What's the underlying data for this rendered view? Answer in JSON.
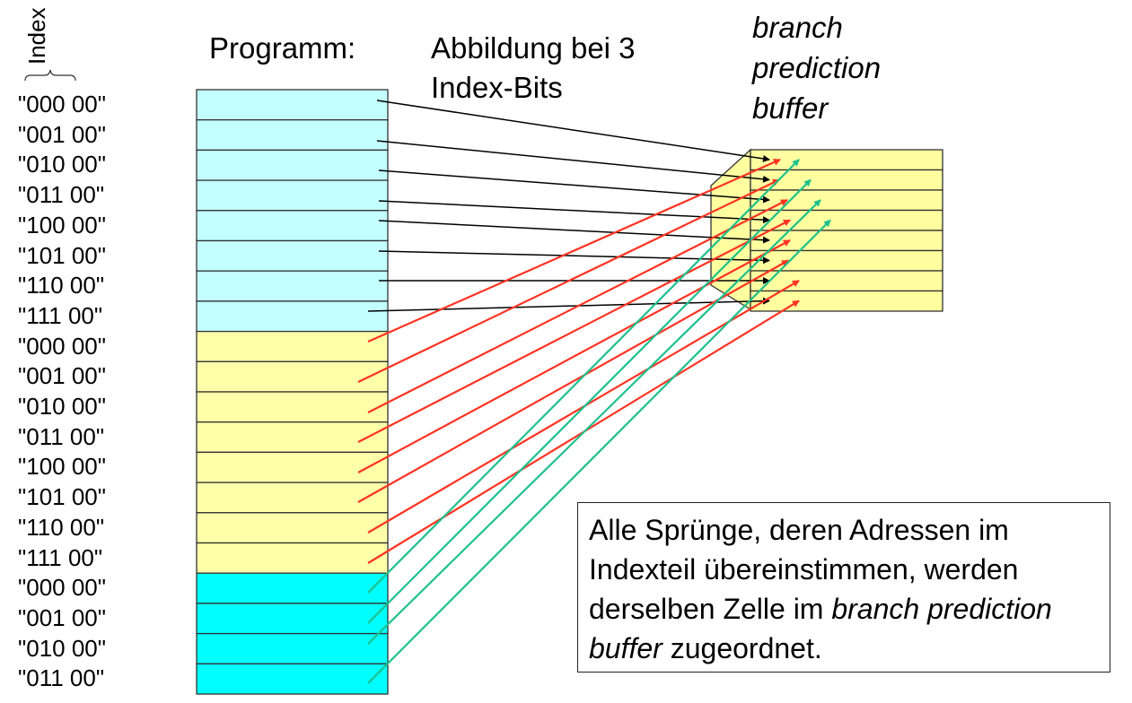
{
  "header": {
    "index_label": "Index",
    "program_label": "Programm:",
    "mapping_label_line1": "Abbildung bei 3",
    "mapping_label_line2": "Index-Bits",
    "buffer_label_line1": "branch",
    "buffer_label_line2": "prediction",
    "buffer_label_line3": "buffer"
  },
  "program": {
    "addresses": [
      "\"000 00\"",
      "\"001 00\"",
      "\"010 00\"",
      "\"011 00\"",
      "\"100 00\"",
      "\"101 00\"",
      "\"110 00\"",
      "\"111 00\"",
      "\"000 00\"",
      "\"001 00\"",
      "\"010 00\"",
      "\"011 00\"",
      "\"100 00\"",
      "\"101 00\"",
      "\"110 00\"",
      "\"111 00\"",
      "\"000 00\"",
      "\"001 00\"",
      "\"010 00\"",
      "\"011 00\""
    ],
    "block_colors": [
      "#c4ffff",
      "#ffffaa",
      "#00ffff"
    ],
    "arrow_colors": [
      "#000000",
      "#ff3322",
      "#1ec08c"
    ]
  },
  "buffer": {
    "entries": 8,
    "color": "#ffffa0"
  },
  "note": {
    "part1": "Alle Sprünge, deren Adressen im Indexteil übereinstimmen, werden derselben Zelle im ",
    "italic1": "branch prediction buffer",
    "part2": " zugeordnet."
  }
}
